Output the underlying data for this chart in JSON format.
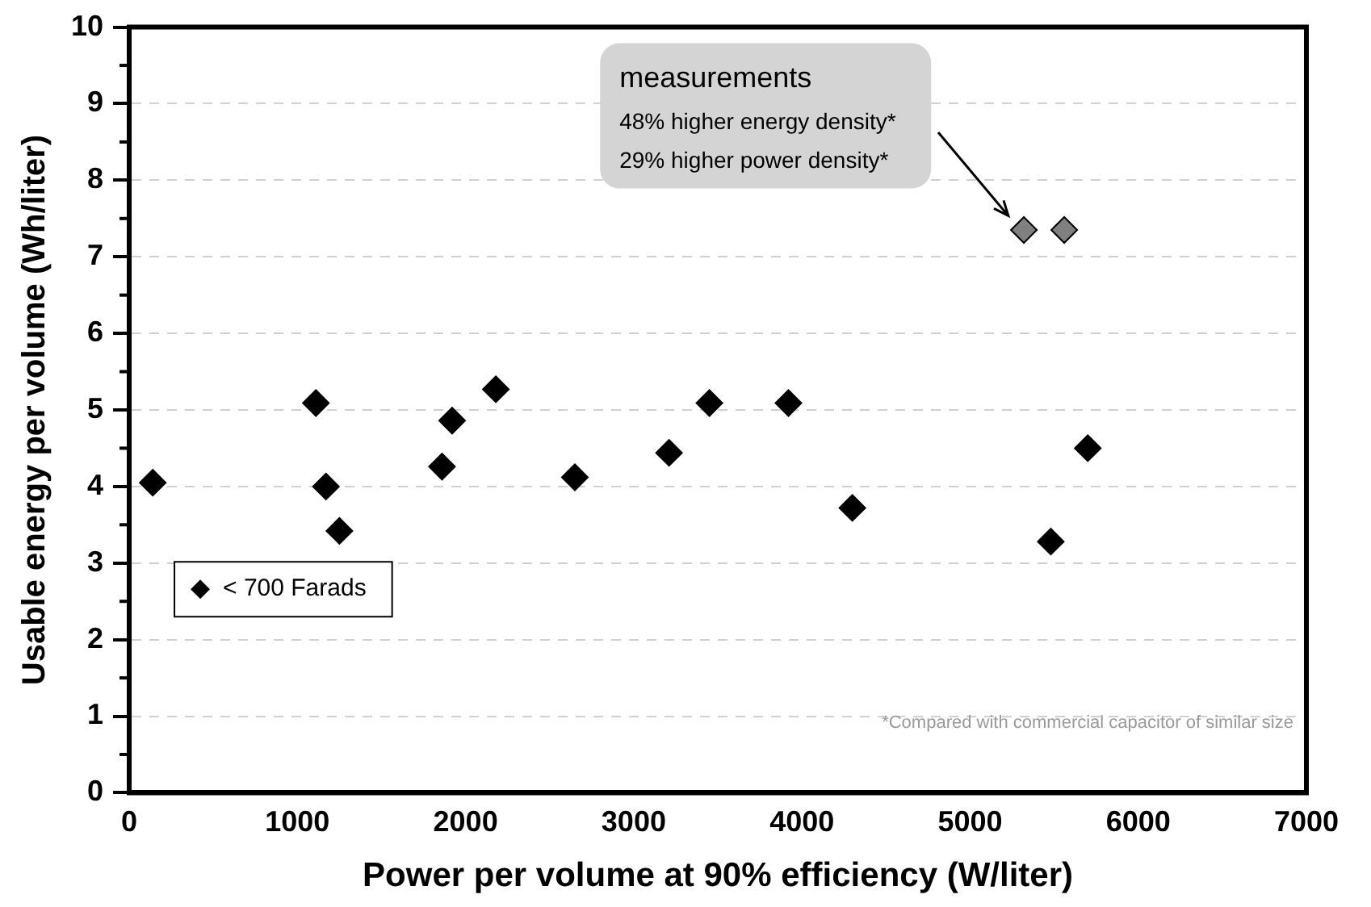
{
  "chart_data": {
    "type": "scatter",
    "xlabel": "Power per volume at 90% efficiency (W/liter)",
    "ylabel": "Usable energy per volume (Wh/liter)",
    "xlim": [
      0,
      7000
    ],
    "xticks": [
      0,
      1000,
      2000,
      3000,
      4000,
      5000,
      6000,
      7000
    ],
    "ylim": [
      0,
      10
    ],
    "yticks": [
      0,
      1,
      2,
      3,
      4,
      5,
      6,
      7,
      8,
      9,
      10
    ],
    "grid": "y",
    "legend": "bottom left",
    "marker": "diamond",
    "series": [
      {
        "name": "< 700 Farads",
        "color": "#000000",
        "x": [
          140,
          1110,
          1170,
          1250,
          1860,
          1920,
          2180,
          2650,
          3210,
          3450,
          3920,
          4300,
          5480,
          5700
        ],
        "values": [
          4.05,
          5.09,
          4.0,
          3.42,
          4.26,
          4.86,
          5.27,
          4.12,
          4.44,
          5.09,
          5.09,
          3.72,
          3.28,
          4.5
        ]
      },
      {
        "color": "#808080",
        "x": [
          5320,
          5560
        ],
        "values": [
          7.35,
          7.35
        ]
      }
    ],
    "annotations": [
      "measurements",
      "48% higher energy density*",
      "29% higher power density*",
      "*Compared with commercial capacitor of similar size"
    ]
  }
}
